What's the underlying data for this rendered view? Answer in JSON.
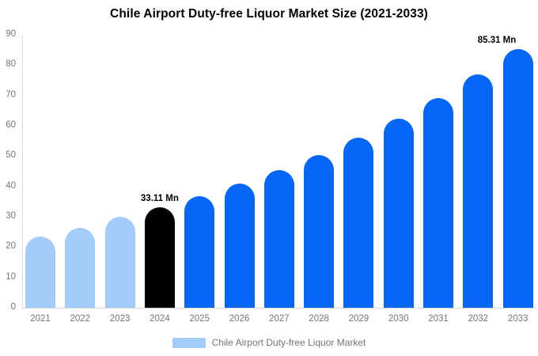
{
  "chart_data": {
    "type": "bar",
    "title": "Chile Airport Duty-free Liquor Market Size (2021-2033)",
    "categories": [
      "2021",
      "2022",
      "2023",
      "2024",
      "2025",
      "2026",
      "2027",
      "2028",
      "2029",
      "2030",
      "2031",
      "2032",
      "2033"
    ],
    "values": [
      23.5,
      26.4,
      29.9,
      33.11,
      36.79,
      40.87,
      45.41,
      50.44,
      56.04,
      62.26,
      69.16,
      76.84,
      85.31
    ],
    "unit": "Mn",
    "xlabel": "",
    "ylabel": "",
    "ylim": [
      0,
      90
    ],
    "yticks": [
      0,
      10,
      20,
      30,
      40,
      50,
      60,
      70,
      80,
      90
    ],
    "grid": "off",
    "legend_position": "bottom",
    "data_labels": [
      {
        "index": 3,
        "text": "33.11 Mn"
      },
      {
        "index": 12,
        "text": "85.31 Mn"
      }
    ],
    "bar_colors": [
      "#A3CCFA",
      "#A3CCFA",
      "#A3CCFA",
      "#000000",
      "#0666F5",
      "#0666F5",
      "#0666F5",
      "#0666F5",
      "#0666F5",
      "#0666F5",
      "#0666F5",
      "#0666F5",
      "#0666F5"
    ],
    "legend": [
      {
        "label": "Chile Airport Duty-free Liquor Market",
        "color": "#A3CCFA"
      }
    ]
  },
  "colors": {
    "historical_bar": "#A3CCFA",
    "highlight_bar": "#000000",
    "forecast_bar": "#0666F5",
    "axis_text": "#757575",
    "axis_line": "#dcdcdc",
    "title_text": "#000000"
  }
}
